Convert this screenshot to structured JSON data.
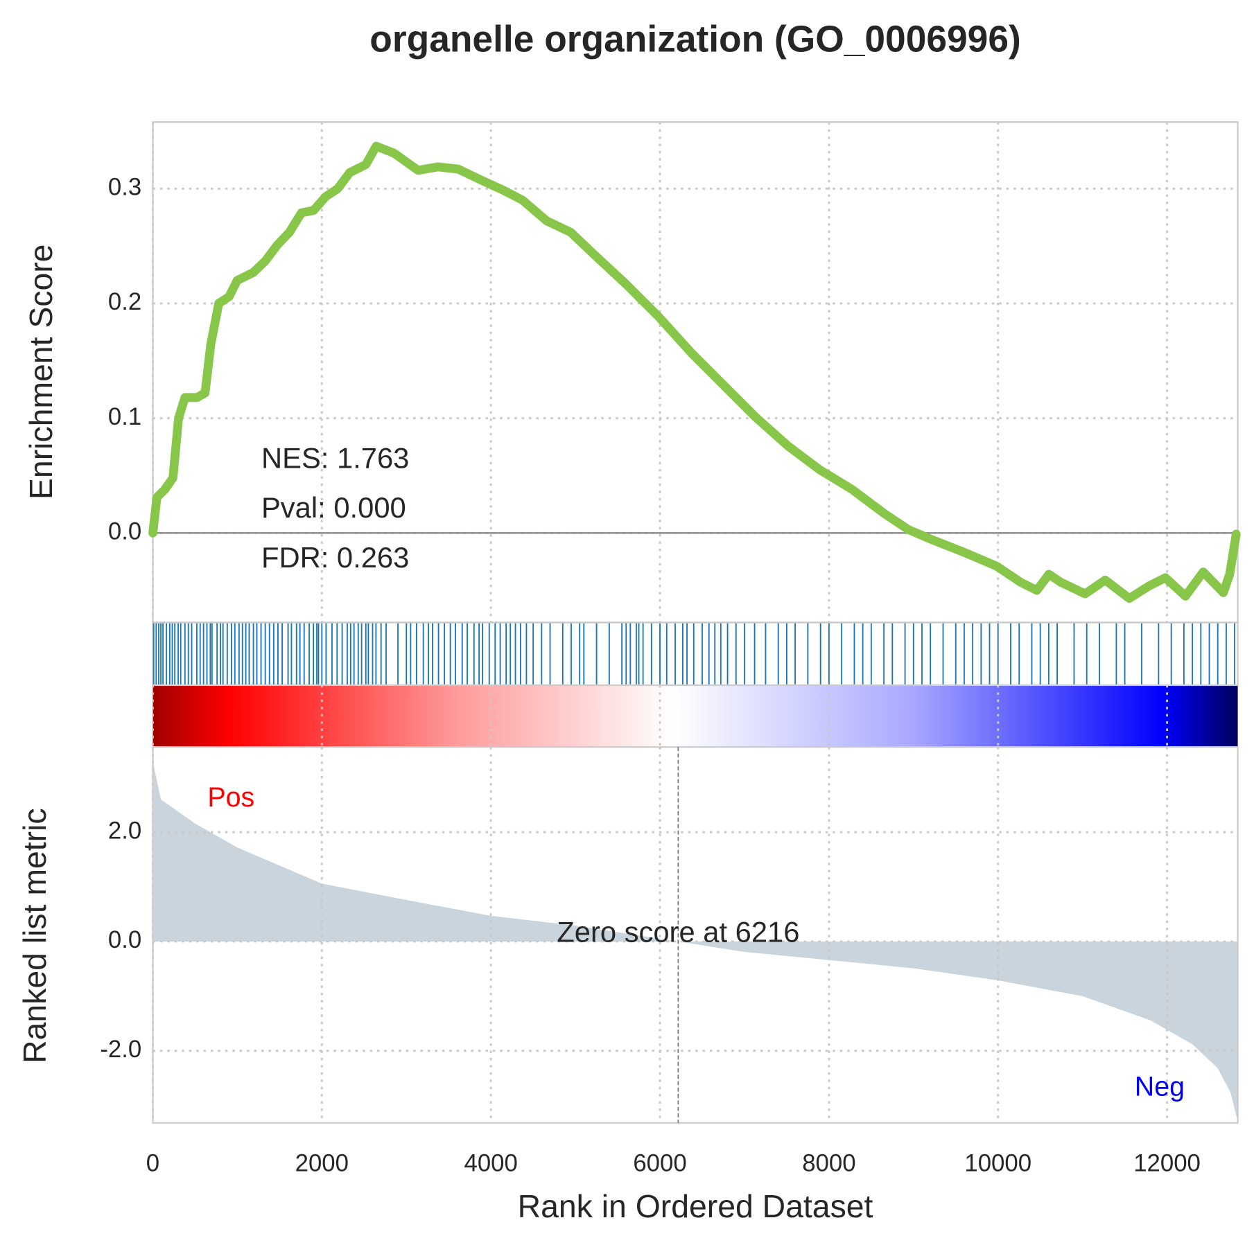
{
  "chart_data": [
    {
      "type": "line",
      "title": "organelle organization (GO_0006996)",
      "ylabel": "Enrichment Score",
      "color": "#88c64a",
      "grid": true,
      "annotations": [
        "NES: 1.763",
        "Pval: 0.000",
        "FDR: 0.263"
      ],
      "xlim": [
        0,
        12837
      ],
      "ylim": [
        -0.078,
        0.358
      ],
      "yticks": [
        {
          "value": 0,
          "label": "0.0"
        },
        0.1,
        0.2,
        0.3
      ],
      "x": [
        0,
        48,
        143,
        238,
        304,
        380,
        523,
        618,
        685,
        780,
        903,
        998,
        1189,
        1331,
        1474,
        1616,
        1759,
        1902,
        2044,
        2187,
        2330,
        2520,
        2643,
        2852,
        3138,
        3376,
        3613,
        3899,
        4136,
        4374,
        4659,
        4944,
        5230,
        5610,
        5990,
        6371,
        6751,
        7131,
        7512,
        7892,
        8272,
        8653,
        8938,
        9224,
        9604,
        9985,
        10270,
        10459,
        10602,
        10745,
        11030,
        11268,
        11553,
        11790,
        11980,
        12218,
        12428,
        12666,
        12741,
        12818
      ],
      "values": [
        0,
        0.031,
        0.038,
        0.048,
        0.1,
        0.118,
        0.118,
        0.122,
        0.164,
        0.2,
        0.206,
        0.22,
        0.227,
        0.237,
        0.251,
        0.262,
        0.279,
        0.281,
        0.293,
        0.3,
        0.314,
        0.321,
        0.337,
        0.331,
        0.316,
        0.319,
        0.317,
        0.307,
        0.299,
        0.29,
        0.272,
        0.262,
        0.242,
        0.216,
        0.188,
        0.157,
        0.129,
        0.101,
        0.076,
        0.055,
        0.038,
        0.017,
        0.003,
        -0.006,
        -0.017,
        -0.029,
        -0.043,
        -0.05,
        -0.036,
        -0.043,
        -0.053,
        -0.041,
        -0.057,
        -0.046,
        -0.039,
        -0.055,
        -0.034,
        -0.052,
        -0.036,
        -0.001
      ]
    },
    {
      "type": "rug",
      "color": "#1a76b8",
      "xlim": [
        0,
        12837
      ],
      "x": [
        10,
        40,
        70,
        95,
        120,
        160,
        200,
        230,
        260,
        300,
        330,
        380,
        420,
        460,
        520,
        560,
        600,
        640,
        680,
        700,
        760,
        800,
        830,
        880,
        930,
        970,
        1020,
        1060,
        1100,
        1140,
        1190,
        1230,
        1280,
        1330,
        1380,
        1430,
        1480,
        1530,
        1600,
        1640,
        1700,
        1740,
        1790,
        1850,
        1900,
        1940,
        1960,
        2000,
        2050,
        2120,
        2180,
        2240,
        2300,
        2340,
        2380,
        2430,
        2470,
        2520,
        2550,
        2600,
        2640,
        2700,
        2760,
        2900,
        3000,
        3050,
        3120,
        3200,
        3260,
        3310,
        3380,
        3450,
        3520,
        3580,
        3660,
        3720,
        3800,
        3860,
        3900,
        3980,
        4050,
        4110,
        4180,
        4230,
        4290,
        4350,
        4420,
        4500,
        4600,
        4700,
        4850,
        4950,
        5050,
        5100,
        5250,
        5400,
        5550,
        5600,
        5650,
        5720,
        5750,
        5800,
        5900,
        6000,
        6080,
        6180,
        6270,
        6320,
        6400,
        6500,
        6580,
        6650,
        6720,
        6800,
        6900,
        7000,
        7120,
        7250,
        7400,
        7500,
        7600,
        7750,
        7900,
        8000,
        8150,
        8300,
        8400,
        8500,
        8650,
        8750,
        8900,
        9000,
        9100,
        9200,
        9350,
        9500,
        9600,
        9700,
        9800,
        9900,
        10000,
        10150,
        10250,
        10400,
        10500,
        10600,
        10700,
        10900,
        11050,
        11200,
        11400,
        11500,
        11700,
        11900,
        12050,
        12200,
        12300,
        12400,
        12500,
        12600,
        12700,
        12800
      ]
    },
    {
      "type": "area",
      "ylabel": "Ranked list metric",
      "xlabel": "Rank in Ordered Dataset",
      "color": "#c9d4dd",
      "grid": true,
      "pos_label": "Pos",
      "neg_label": "Neg",
      "zero_rank": 6216,
      "zero_label": "Zero score at 6216",
      "xlim": [
        0,
        12837
      ],
      "ylim": [
        -3.32,
        3.56
      ],
      "xticks": [
        0,
        2000,
        4000,
        6000,
        8000,
        10000,
        12000
      ],
      "yticks": [
        {
          "value": -2,
          "label": "-2.0"
        },
        {
          "value": 0,
          "label": "0.0"
        },
        {
          "value": 2,
          "label": "2.0"
        }
      ],
      "x": [
        0,
        95,
        500,
        1000,
        2000,
        3000,
        4000,
        5000,
        6216,
        7000,
        8000,
        9000,
        10000,
        11000,
        11800,
        12300,
        12600,
        12750,
        12837
      ],
      "values": [
        3.29,
        2.6,
        2.16,
        1.72,
        1.06,
        0.76,
        0.47,
        0.29,
        0,
        -0.19,
        -0.34,
        -0.49,
        -0.71,
        -1.0,
        -1.44,
        -1.88,
        -2.32,
        -2.76,
        -3.3
      ]
    }
  ]
}
